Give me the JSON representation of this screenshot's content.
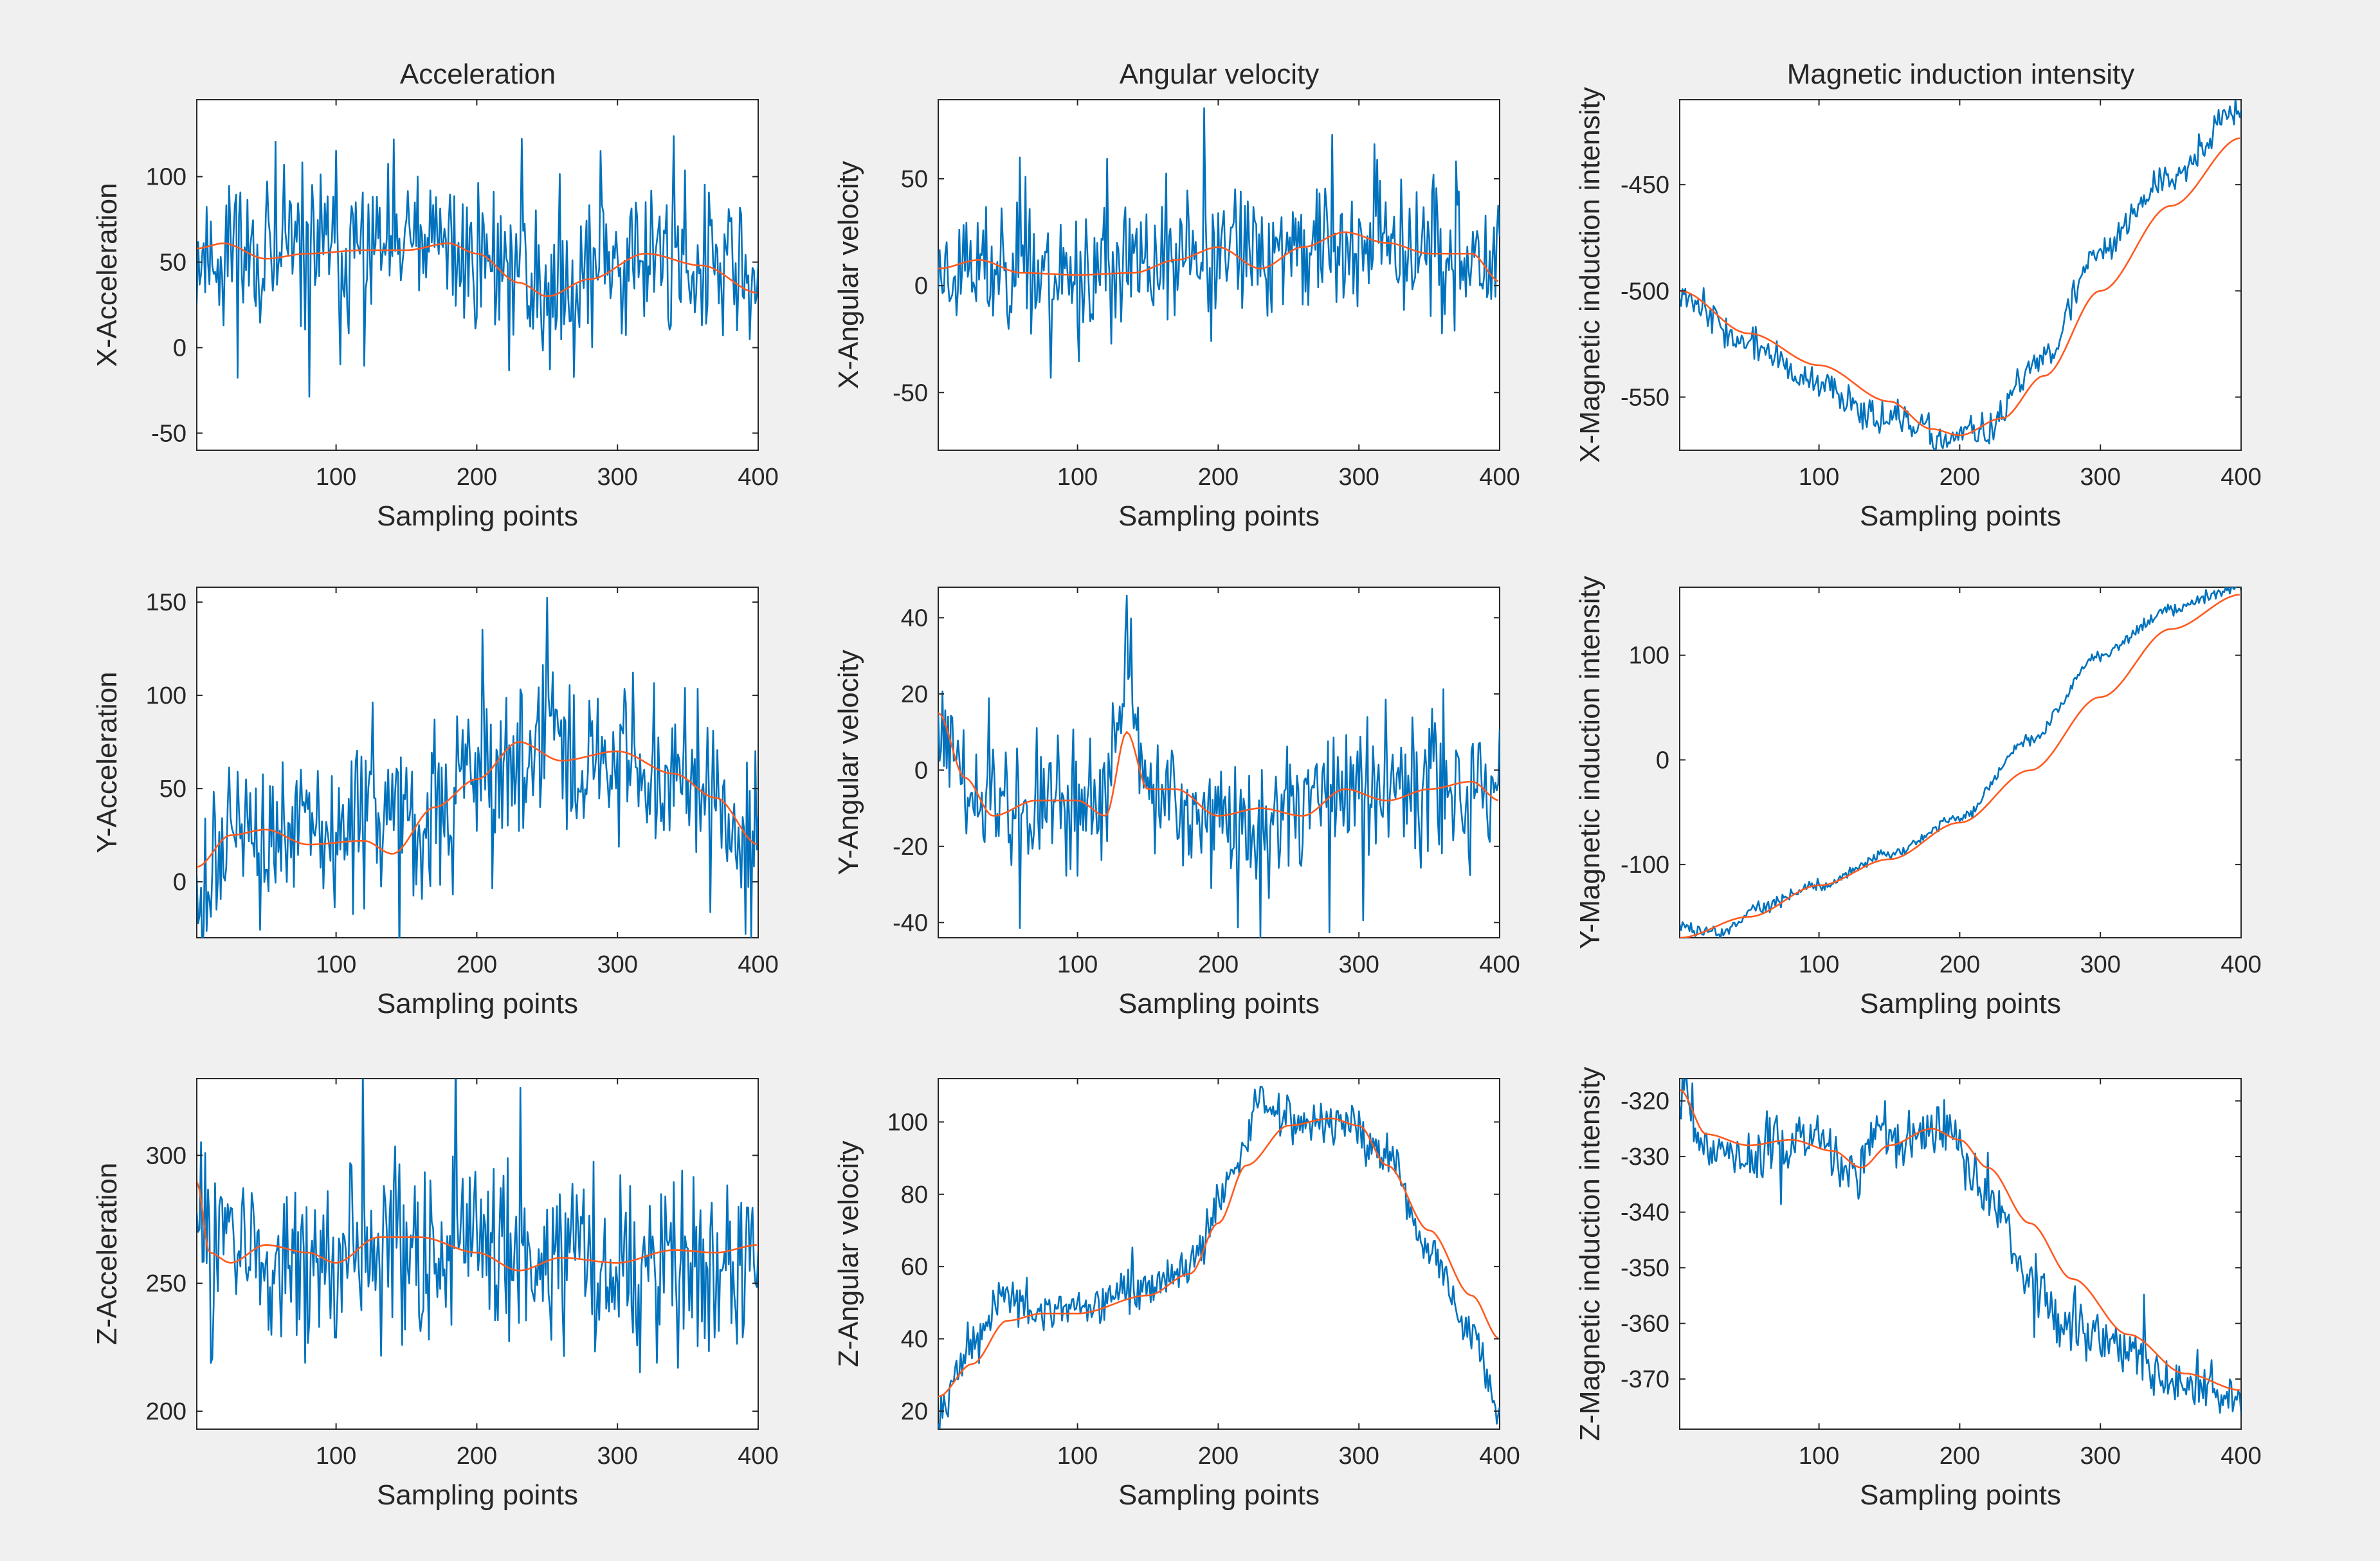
{
  "figure": {
    "column_titles": [
      "Acceleration",
      "Angular velocity",
      "Magnetic induction intensity"
    ]
  },
  "colors": {
    "raw": "#0072bd",
    "smooth": "#ff5a1f",
    "background": "#f0f0f0",
    "axes": "#262626"
  },
  "chart_data": [
    {
      "type": "line",
      "id": "x-acc",
      "row": 0,
      "col": 0,
      "xlabel": "Sampling points",
      "ylabel": "X-Acceleration",
      "xlim": [
        1,
        400
      ],
      "ylim": [
        -60,
        145
      ],
      "xticks": [
        100,
        200,
        300,
        400
      ],
      "yticks": [
        -50,
        0,
        50,
        100
      ],
      "series": [
        {
          "name": "raw",
          "style": "noisy",
          "seed": 11,
          "noise": 23,
          "spikes": 0.03,
          "x": [
            1,
            50,
            100,
            150,
            200,
            250,
            300,
            350,
            400
          ],
          "y": [
            55,
            57,
            58,
            60,
            55,
            35,
            55,
            50,
            40
          ]
        },
        {
          "name": "smooth",
          "style": "smooth",
          "x": [
            1,
            20,
            50,
            80,
            120,
            150,
            180,
            200,
            230,
            250,
            280,
            320,
            360,
            400
          ],
          "y": [
            58,
            61,
            52,
            55,
            57,
            57,
            61,
            55,
            38,
            30,
            40,
            55,
            48,
            32
          ]
        }
      ]
    },
    {
      "type": "line",
      "id": "x-ang",
      "row": 0,
      "col": 1,
      "xlabel": "Sampling points",
      "ylabel": "X-Angular velocity",
      "xlim": [
        1,
        400
      ],
      "ylim": [
        -77,
        87
      ],
      "xticks": [
        100,
        200,
        300,
        400
      ],
      "yticks": [
        -50,
        0,
        50
      ],
      "series": [
        {
          "name": "raw",
          "style": "noisy",
          "seed": 23,
          "noise": 15,
          "spikes": 0.04,
          "x": [
            1,
            50,
            100,
            150,
            200,
            250,
            300,
            350,
            385,
            400
          ],
          "y": [
            8,
            10,
            5,
            8,
            15,
            18,
            22,
            18,
            5,
            12
          ]
        },
        {
          "name": "smooth",
          "style": "smooth",
          "x": [
            1,
            30,
            60,
            100,
            140,
            170,
            200,
            230,
            260,
            290,
            320,
            350,
            380,
            400
          ],
          "y": [
            8,
            12,
            6,
            5,
            6,
            12,
            18,
            8,
            18,
            25,
            20,
            15,
            15,
            2
          ]
        }
      ]
    },
    {
      "type": "line",
      "id": "x-mag",
      "row": 0,
      "col": 2,
      "xlabel": "Sampling points",
      "ylabel": "X-Magnetic induction intensity",
      "xlim": [
        1,
        400
      ],
      "ylim": [
        -575,
        -410
      ],
      "xticks": [
        100,
        200,
        300,
        400
      ],
      "yticks": [
        -550,
        -500,
        -450
      ],
      "series": [
        {
          "name": "raw",
          "style": "noisy",
          "seed": 37,
          "noise": 4,
          "spikes": 0,
          "x": [
            1,
            50,
            100,
            150,
            190,
            220,
            260,
            300,
            350,
            400
          ],
          "y": [
            -500,
            -525,
            -545,
            -560,
            -570,
            -565,
            -530,
            -480,
            -445,
            -415
          ]
        },
        {
          "name": "smooth",
          "style": "smooth",
          "x": [
            1,
            50,
            100,
            150,
            180,
            200,
            230,
            260,
            300,
            350,
            400
          ],
          "y": [
            -500,
            -520,
            -535,
            -552,
            -565,
            -568,
            -560,
            -540,
            -500,
            -460,
            -428
          ]
        }
      ]
    },
    {
      "type": "line",
      "id": "y-acc",
      "row": 1,
      "col": 0,
      "xlabel": "Sampling points",
      "ylabel": "Y-Acceleration",
      "xlim": [
        1,
        400
      ],
      "ylim": [
        -30,
        158
      ],
      "xticks": [
        100,
        200,
        300,
        400
      ],
      "yticks": [
        0,
        50,
        100,
        150
      ],
      "series": [
        {
          "name": "raw",
          "style": "noisy",
          "seed": 49,
          "noise": 22,
          "spikes": 0.03,
          "x": [
            1,
            50,
            100,
            150,
            200,
            250,
            300,
            350,
            400
          ],
          "y": [
            10,
            25,
            25,
            30,
            55,
            70,
            65,
            55,
            20
          ]
        },
        {
          "name": "smooth",
          "style": "smooth",
          "x": [
            1,
            25,
            50,
            80,
            120,
            140,
            170,
            200,
            230,
            260,
            300,
            340,
            370,
            400
          ],
          "y": [
            8,
            25,
            28,
            20,
            22,
            15,
            40,
            55,
            75,
            65,
            70,
            58,
            45,
            20
          ]
        }
      ]
    },
    {
      "type": "line",
      "id": "y-ang",
      "row": 1,
      "col": 1,
      "xlabel": "Sampling points",
      "ylabel": "Y-Angular velocity",
      "xlim": [
        1,
        400
      ],
      "ylim": [
        -44,
        48
      ],
      "xticks": [
        100,
        200,
        300,
        400
      ],
      "yticks": [
        -40,
        -20,
        0,
        20,
        40
      ],
      "series": [
        {
          "name": "raw",
          "style": "noisy",
          "seed": 61,
          "noise": 8,
          "spikes": 0.03,
          "x": [
            1,
            30,
            60,
            100,
            120,
            135,
            150,
            180,
            220,
            260,
            300,
            340,
            380,
            400
          ],
          "y": [
            12,
            -10,
            -12,
            -10,
            -8,
            30,
            -5,
            -12,
            -15,
            -8,
            -5,
            -3,
            -8,
            -5
          ]
        },
        {
          "name": "smooth",
          "style": "smooth",
          "x": [
            1,
            20,
            40,
            70,
            100,
            120,
            135,
            150,
            170,
            200,
            230,
            260,
            290,
            320,
            350,
            380,
            400
          ],
          "y": [
            15,
            -2,
            -12,
            -8,
            -8,
            -12,
            10,
            -5,
            -5,
            -12,
            -10,
            -12,
            -5,
            -8,
            -5,
            -3,
            -8
          ]
        }
      ]
    },
    {
      "type": "line",
      "id": "y-mag",
      "row": 1,
      "col": 2,
      "xlabel": "Sampling points",
      "ylabel": "Y-Magnetic induction intensity",
      "xlim": [
        1,
        400
      ],
      "ylim": [
        -170,
        165
      ],
      "xticks": [
        100,
        200,
        300,
        400
      ],
      "yticks": [
        -100,
        0,
        100
      ],
      "series": [
        {
          "name": "raw",
          "style": "noisy",
          "seed": 73,
          "noise": 3,
          "spikes": 0,
          "x": [
            1,
            30,
            60,
            100,
            150,
            200,
            250,
            300,
            350,
            400
          ],
          "y": [
            -160,
            -165,
            -140,
            -120,
            -90,
            -55,
            20,
            100,
            145,
            165
          ]
        },
        {
          "name": "smooth",
          "style": "smooth",
          "x": [
            1,
            50,
            100,
            150,
            200,
            250,
            300,
            350,
            400
          ],
          "y": [
            -170,
            -150,
            -120,
            -95,
            -60,
            -10,
            60,
            125,
            158
          ]
        }
      ]
    },
    {
      "type": "line",
      "id": "z-acc",
      "row": 2,
      "col": 0,
      "xlabel": "Sampling points",
      "ylabel": "Z-Acceleration",
      "xlim": [
        1,
        400
      ],
      "ylim": [
        193,
        330
      ],
      "xticks": [
        100,
        200,
        300,
        400
      ],
      "yticks": [
        200,
        250,
        300
      ],
      "series": [
        {
          "name": "raw",
          "style": "noisy",
          "seed": 83,
          "noise": 17,
          "spikes": 0.03,
          "x": [
            1,
            50,
            100,
            150,
            200,
            250,
            300,
            350,
            400
          ],
          "y": [
            270,
            262,
            258,
            265,
            262,
            258,
            262,
            260,
            265
          ]
        },
        {
          "name": "smooth",
          "style": "smooth",
          "x": [
            1,
            10,
            25,
            50,
            80,
            100,
            130,
            160,
            200,
            230,
            260,
            300,
            340,
            370,
            400
          ],
          "y": [
            290,
            262,
            258,
            265,
            262,
            258,
            268,
            268,
            262,
            255,
            260,
            258,
            263,
            262,
            265
          ]
        }
      ]
    },
    {
      "type": "line",
      "id": "z-ang",
      "row": 2,
      "col": 1,
      "xlabel": "Sampling points",
      "ylabel": "Z-Angular velocity",
      "xlim": [
        1,
        400
      ],
      "ylim": [
        15,
        112
      ],
      "xticks": [
        100,
        200,
        300,
        400
      ],
      "yticks": [
        20,
        40,
        60,
        80,
        100
      ],
      "series": [
        {
          "name": "raw",
          "style": "noisy",
          "seed": 97,
          "noise": 3,
          "spikes": 0.01,
          "x": [
            1,
            25,
            50,
            75,
            100,
            150,
            180,
            210,
            230,
            260,
            290,
            320,
            350,
            380,
            400
          ],
          "y": [
            22,
            38,
            52,
            46,
            48,
            55,
            60,
            85,
            105,
            100,
            100,
            90,
            65,
            40,
            18
          ]
        },
        {
          "name": "smooth",
          "style": "smooth",
          "x": [
            1,
            25,
            50,
            75,
            100,
            150,
            180,
            200,
            220,
            250,
            280,
            300,
            320,
            350,
            380,
            400
          ],
          "y": [
            24,
            33,
            45,
            47,
            47,
            52,
            58,
            72,
            88,
            99,
            101,
            99,
            88,
            70,
            52,
            40
          ]
        }
      ]
    },
    {
      "type": "line",
      "id": "z-mag",
      "row": 2,
      "col": 2,
      "xlabel": "Sampling points",
      "ylabel": "Z-Magnetic induction intensity",
      "xlim": [
        1,
        400
      ],
      "ylim": [
        -379,
        -316
      ],
      "xticks": [
        100,
        200,
        300,
        400
      ],
      "yticks": [
        -370,
        -360,
        -350,
        -340,
        -330,
        -320
      ],
      "series": [
        {
          "name": "raw",
          "style": "noisy",
          "seed": 109,
          "noise": 2.5,
          "spikes": 0.01,
          "x": [
            1,
            20,
            50,
            80,
            100,
            125,
            140,
            160,
            190,
            220,
            250,
            280,
            320,
            360,
            400
          ],
          "y": [
            -318,
            -328,
            -330,
            -327,
            -328,
            -333,
            -325,
            -328,
            -325,
            -335,
            -352,
            -360,
            -366,
            -372,
            -372
          ]
        },
        {
          "name": "smooth",
          "style": "smooth",
          "x": [
            1,
            20,
            50,
            80,
            110,
            130,
            150,
            180,
            200,
            220,
            250,
            280,
            320,
            360,
            400
          ],
          "y": [
            -318,
            -326,
            -328,
            -327,
            -329,
            -332,
            -328,
            -325,
            -327,
            -332,
            -342,
            -352,
            -362,
            -369,
            -372
          ]
        }
      ]
    }
  ]
}
